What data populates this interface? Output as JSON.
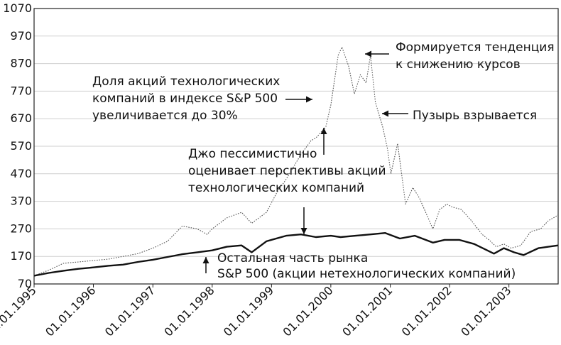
{
  "chart_data": {
    "type": "line",
    "ylim": [
      70,
      1070
    ],
    "yticks": [
      70,
      170,
      270,
      370,
      470,
      570,
      670,
      770,
      870,
      970,
      1070
    ],
    "xlim": [
      "1995-01-01",
      "2003-10-31"
    ],
    "xticks": [
      "01.01.1995",
      "01.01.1996",
      "01.01.1997",
      "01.01.1998",
      "01.01.1999",
      "01.01.2000",
      "01.01.2001",
      "01.01.2002",
      "01.01.2003"
    ],
    "grid": "horizontal",
    "series": [
      {
        "name": "",
        "style": "dotted",
        "color": "#555555",
        "x": [
          "1995-01-01",
          "1995-04-01",
          "1995-07-01",
          "1995-10-01",
          "1996-01-01",
          "1996-04-01",
          "1996-07-01",
          "1996-10-01",
          "1997-01-01",
          "1997-04-01",
          "1997-07-01",
          "1997-10-01",
          "1997-12-01",
          "1998-01-01",
          "1998-04-01",
          "1998-07-01",
          "1998-09-01",
          "1998-12-01",
          "1999-02-01",
          "1999-04-01",
          "1999-07-01",
          "1999-09-01",
          "1999-10-01",
          "1999-12-01",
          "2000-01-01",
          "2000-02-15",
          "2000-03-10",
          "2000-04-20",
          "2000-05-25",
          "2000-07-01",
          "2000-08-05",
          "2000-09-01",
          "2000-10-01",
          "2000-11-15",
          "2000-12-15",
          "2001-01-05",
          "2001-02-15",
          "2001-04-05",
          "2001-05-20",
          "2001-07-01",
          "2001-09-20",
          "2001-11-01",
          "2001-12-15",
          "2002-01-15",
          "2002-03-15",
          "2002-05-15",
          "2002-07-20",
          "2002-09-01",
          "2002-10-15",
          "2002-12-01",
          "2003-01-15",
          "2003-03-15",
          "2003-05-15",
          "2003-07-15",
          "2003-09-01",
          "2003-10-31"
        ],
        "y": [
          100,
          120,
          145,
          150,
          155,
          160,
          170,
          180,
          200,
          225,
          280,
          270,
          250,
          270,
          310,
          330,
          290,
          330,
          400,
          450,
          540,
          590,
          600,
          640,
          720,
          900,
          930,
          860,
          760,
          830,
          800,
          900,
          730,
          640,
          560,
          470,
          580,
          360,
          420,
          380,
          270,
          340,
          360,
          350,
          340,
          300,
          250,
          230,
          205,
          215,
          200,
          210,
          260,
          270,
          300,
          320
        ]
      },
      {
        "name": "",
        "style": "solid",
        "color": "#111111",
        "x": [
          "1995-01-01",
          "1995-04-01",
          "1995-07-01",
          "1995-10-01",
          "1996-01-01",
          "1996-04-01",
          "1996-07-01",
          "1996-10-01",
          "1997-01-01",
          "1997-04-01",
          "1997-07-01",
          "1997-10-01",
          "1998-01-01",
          "1998-04-01",
          "1998-07-01",
          "1998-09-01",
          "1998-12-01",
          "1999-04-01",
          "1999-07-01",
          "1999-10-01",
          "2000-01-01",
          "2000-03-01",
          "2000-06-01",
          "2000-09-01",
          "2000-12-01",
          "2001-03-01",
          "2001-06-01",
          "2001-09-20",
          "2001-12-01",
          "2002-03-01",
          "2002-06-01",
          "2002-10-01",
          "2002-12-01",
          "2003-02-01",
          "2003-04-01",
          "2003-07-01",
          "2003-09-01",
          "2003-10-31"
        ],
        "y": [
          100,
          110,
          118,
          125,
          130,
          136,
          140,
          150,
          158,
          168,
          178,
          185,
          192,
          205,
          210,
          185,
          225,
          245,
          250,
          240,
          245,
          240,
          245,
          250,
          255,
          235,
          245,
          220,
          230,
          230,
          215,
          180,
          200,
          185,
          175,
          200,
          205,
          210
        ]
      }
    ],
    "annotations": [
      {
        "lines": [
          "Доля акций технологических",
          "компаний в индексе S&P 500",
          "увеличивается до 30%"
        ],
        "x": "1999-09-01",
        "y": 760
      },
      {
        "lines": [
          "Формируется тенденция",
          "к снижению курсов"
        ],
        "x": "2000-09-01",
        "y": 900
      },
      {
        "lines": [
          "Пузырь взрывается"
        ],
        "x": "2001-01-05",
        "y": 685
      },
      {
        "lines": [
          "Джо пессимистично",
          "оценивает перспективы акций",
          "технологических компаний"
        ],
        "x": "1999-09-01",
        "y": 575
      },
      {
        "lines": [
          "Остальная часть рынка",
          "S&P 500 (акции нетехнологических компаний)"
        ],
        "x": "1998-01-01",
        "y": 180
      }
    ]
  }
}
